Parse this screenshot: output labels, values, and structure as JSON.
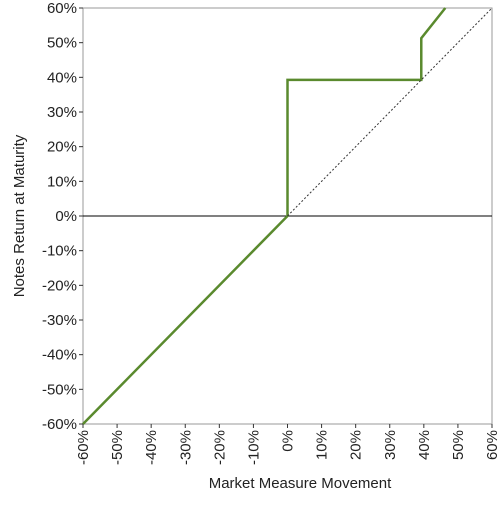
{
  "chart_data": {
    "type": "line",
    "x_label": "Market Measure Movement",
    "y_label": "Notes Return at Maturity",
    "xlim": [
      -60,
      60
    ],
    "ylim": [
      -60,
      60
    ],
    "xticks": [
      {
        "value": -60,
        "label": "-60%"
      },
      {
        "value": -50,
        "label": "-50%"
      },
      {
        "value": -40,
        "label": "-40%"
      },
      {
        "value": -30,
        "label": "-30%"
      },
      {
        "value": -20,
        "label": "-20%"
      },
      {
        "value": -10,
        "label": "-10%"
      },
      {
        "value": 0,
        "label": "0%"
      },
      {
        "value": 10,
        "label": "10%"
      },
      {
        "value": 20,
        "label": "20%"
      },
      {
        "value": 30,
        "label": "30%"
      },
      {
        "value": 40,
        "label": "40%"
      },
      {
        "value": 50,
        "label": "50%"
      },
      {
        "value": 60,
        "label": "60%"
      }
    ],
    "yticks": [
      {
        "value": -60,
        "label": "-60%"
      },
      {
        "value": -50,
        "label": "-50%"
      },
      {
        "value": -40,
        "label": "-40%"
      },
      {
        "value": -30,
        "label": "-30%"
      },
      {
        "value": -20,
        "label": "-20%"
      },
      {
        "value": -10,
        "label": "-10%"
      },
      {
        "value": 0,
        "label": "0%"
      },
      {
        "value": 10,
        "label": "10%"
      },
      {
        "value": 20,
        "label": "20%"
      },
      {
        "value": 30,
        "label": "30%"
      },
      {
        "value": 40,
        "label": "40%"
      },
      {
        "value": 50,
        "label": "50%"
      },
      {
        "value": 60,
        "label": "60%"
      }
    ],
    "series": [
      {
        "color": "#5a8a2e",
        "style": "solid",
        "x": [
          -60,
          0,
          0,
          39.25,
          39.25,
          46.3
        ],
        "values": [
          -60,
          0,
          39.25,
          39.25,
          51.3,
          60
        ]
      },
      {
        "color": "#333333",
        "style": "dotted",
        "x": [
          0,
          60
        ],
        "values": [
          0,
          60
        ]
      }
    ]
  }
}
